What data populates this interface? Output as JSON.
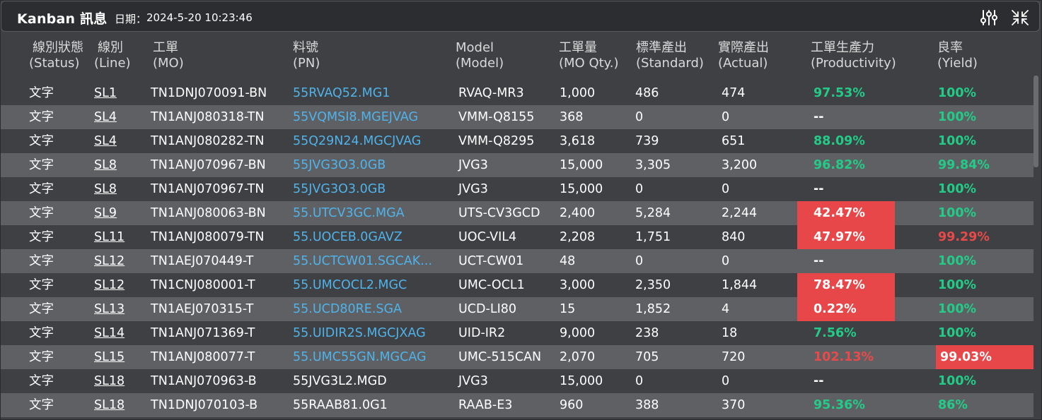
{
  "header": {
    "title": "Kanban 訊息",
    "date_label": "日期：",
    "date_value": "2024-5-20 10:23:46",
    "icons": [
      "sliders-icon",
      "collapse-icon"
    ]
  },
  "columns": [
    {
      "zh": "線別狀態",
      "en": "(Status)"
    },
    {
      "zh": "線別",
      "en": "(Line)"
    },
    {
      "zh": "工單",
      "en": "(MO)"
    },
    {
      "zh": "料號",
      "en": "(PN)"
    },
    {
      "zh": "Model",
      "en": "(Model)"
    },
    {
      "zh": "工單量",
      "en": "(MO Qty.)"
    },
    {
      "zh": "標準產出",
      "en": "(Standard)"
    },
    {
      "zh": "實際產出",
      "en": "(Actual)"
    },
    {
      "zh": "工單生產力",
      "en": "(Productivity)"
    },
    {
      "zh": "良率",
      "en": "(Yield)"
    }
  ],
  "colors": {
    "green": "#22cc88",
    "red": "#e84a4a",
    "blue_link": "#4fb3ea",
    "alt_row": "#5f6064"
  },
  "rows": [
    {
      "status": "文字",
      "line": "SL1",
      "mo": "TN1DNJ070091-BN",
      "pn": "55RVAQ52.MG1",
      "pn_color": "blue",
      "model": "RVAQ-MR3",
      "qty": "1,000",
      "standard": "486",
      "actual": "474",
      "productivity": "97.53%",
      "prod_style": "green",
      "yield": "100%",
      "yield_style": "green"
    },
    {
      "status": "文字",
      "line": "SL4",
      "mo": "TN1ANJ080318-TN",
      "pn": "55VQMSI8.MGEJVAG",
      "pn_color": "blue",
      "model": "VMM-Q8155",
      "qty": "368",
      "standard": "0",
      "actual": "0",
      "productivity": "--",
      "prod_style": "white",
      "yield": "100%",
      "yield_style": "green"
    },
    {
      "status": "文字",
      "line": "SL4",
      "mo": "TN1ANJ080282-TN",
      "pn": "55Q29N24.MGCJVAG",
      "pn_color": "blue",
      "model": "VMM-Q8295",
      "qty": "3,618",
      "standard": "739",
      "actual": "651",
      "productivity": "88.09%",
      "prod_style": "green",
      "yield": "100%",
      "yield_style": "green"
    },
    {
      "status": "文字",
      "line": "SL8",
      "mo": "TN1ANJ070967-BN",
      "pn": "55JVG3O3.0GB",
      "pn_color": "blue",
      "model": "JVG3",
      "qty": "15,000",
      "standard": "3,305",
      "actual": "3,200",
      "productivity": "96.82%",
      "prod_style": "green",
      "yield": "99.84%",
      "yield_style": "green"
    },
    {
      "status": "文字",
      "line": "SL8",
      "mo": "TN1ANJ070967-TN",
      "pn": "55JVG3O3.0GB",
      "pn_color": "blue",
      "model": "JVG3",
      "qty": "15,000",
      "standard": "0",
      "actual": "0",
      "productivity": "--",
      "prod_style": "white",
      "yield": "100%",
      "yield_style": "green"
    },
    {
      "status": "文字",
      "line": "SL9",
      "mo": "TN1ANJ080063-BN",
      "pn": "55.UTCV3GC.MGA",
      "pn_color": "blue",
      "model": "UTS-CV3GCD",
      "qty": "2,400",
      "standard": "5,284",
      "actual": "2,244",
      "productivity": "42.47%",
      "prod_style": "redbg",
      "yield": "100%",
      "yield_style": "green"
    },
    {
      "status": "文字",
      "line": "SL11",
      "mo": "TN1ANJ080079-TN",
      "pn": "55.UOCEB.0GAVZ",
      "pn_color": "blue",
      "model": "UOC-VIL4",
      "qty": "2,208",
      "standard": "1,751",
      "actual": "840",
      "productivity": "47.97%",
      "prod_style": "redbg",
      "yield": "99.29%",
      "yield_style": "red"
    },
    {
      "status": "文字",
      "line": "SL12",
      "mo": "TN1AEJ070449-T",
      "pn": "55.UCTCW01.SGCAK...",
      "pn_color": "blue",
      "model": "UCT-CW01",
      "qty": "48",
      "standard": "0",
      "actual": "0",
      "productivity": "--",
      "prod_style": "white",
      "yield": "100%",
      "yield_style": "green"
    },
    {
      "status": "文字",
      "line": "SL12",
      "mo": "TN1CNJ080001-T",
      "pn": "55.UMCOCL2.MGC",
      "pn_color": "blue",
      "model": "UMC-OCL1",
      "qty": "3,000",
      "standard": "2,350",
      "actual": "1,844",
      "productivity": "78.47%",
      "prod_style": "redbg",
      "yield": "100%",
      "yield_style": "green"
    },
    {
      "status": "文字",
      "line": "SL13",
      "mo": "TN1AEJ070315-T",
      "pn": "55.UCD80RE.SGA",
      "pn_color": "blue",
      "model": "UCD-LI80",
      "qty": "15",
      "standard": "1,852",
      "actual": "4",
      "productivity": "0.22%",
      "prod_style": "redbg",
      "yield": "100%",
      "yield_style": "green"
    },
    {
      "status": "文字",
      "line": "SL14",
      "mo": "TN1ANJ071369-T",
      "pn": "55.UIDIR2S.MGCJXAG",
      "pn_color": "blue",
      "model": "UID-IR2",
      "qty": "9,000",
      "standard": "238",
      "actual": "18",
      "productivity": "7.56%",
      "prod_style": "green",
      "yield": "100%",
      "yield_style": "green"
    },
    {
      "status": "文字",
      "line": "SL15",
      "mo": "TN1ANJ080077-T",
      "pn": "55.UMC55GN.MGCAG",
      "pn_color": "blue",
      "model": "UMC-515CAN",
      "qty": "2,070",
      "standard": "705",
      "actual": "720",
      "productivity": "102.13%",
      "prod_style": "red",
      "yield": "99.03%",
      "yield_style": "redbg"
    },
    {
      "status": "文字",
      "line": "SL18",
      "mo": "TN1ANJ070963-B",
      "pn": "55JVG3L2.MGD",
      "pn_color": "white",
      "model": "JVG3",
      "qty": "15,000",
      "standard": "0",
      "actual": "0",
      "productivity": "--",
      "prod_style": "white",
      "yield": "100%",
      "yield_style": "green"
    },
    {
      "status": "文字",
      "line": "SL18",
      "mo": "TN1DNJ070103-B",
      "pn": "55RAAB81.0G1",
      "pn_color": "white",
      "model": "RAAB-E3",
      "qty": "960",
      "standard": "388",
      "actual": "370",
      "productivity": "95.36%",
      "prod_style": "green",
      "yield": "86%",
      "yield_style": "green"
    }
  ]
}
